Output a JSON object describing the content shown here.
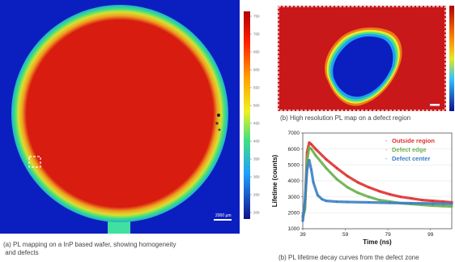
{
  "panel_a": {
    "caption_line1": "(a) PL mapping on a InP based wafer, showing homogeneity",
    "caption_line2": " and defects",
    "scalebar_label": "2000 µm",
    "colorbar_ticks": [
      "750",
      "700",
      "650",
      "600",
      "550",
      "500",
      "450",
      "400",
      "350",
      "300",
      "250",
      "200"
    ]
  },
  "panel_b_map": {
    "caption": "(b) High resolution PL map on a defect region"
  },
  "colors": {
    "background_map": "#0b1fc0",
    "map_red": "#d01a10",
    "outside_region": "#e03030",
    "defect_edge": "#6ab04c",
    "defect_center": "#3b7fc4"
  },
  "chart_data": {
    "type": "line",
    "title": "",
    "xlabel": "Time (ns)",
    "ylabel": "Lifetime (counts)",
    "xlim": [
      39,
      109
    ],
    "ylim": [
      1000,
      7000
    ],
    "xticks": [
      39,
      59,
      79,
      99
    ],
    "yticks": [
      1000,
      2000,
      3000,
      4000,
      5000,
      6000,
      7000
    ],
    "caption": "(b) PL lifetime decay curves from the defect zone",
    "series": [
      {
        "name": "Outside region",
        "color": "#e03030",
        "x": [
          39,
          40,
          41,
          42,
          43,
          45,
          50,
          55,
          60,
          65,
          70,
          75,
          80,
          85,
          90,
          95,
          100,
          105,
          109
        ],
        "y": [
          1800,
          2300,
          5800,
          6400,
          6300,
          6000,
          5350,
          4800,
          4300,
          3900,
          3600,
          3350,
          3150,
          3000,
          2900,
          2800,
          2750,
          2700,
          2650
        ]
      },
      {
        "name": "Defect edge",
        "color": "#6ab04c",
        "x": [
          39,
          40,
          41,
          42,
          43,
          45,
          50,
          55,
          60,
          65,
          70,
          75,
          80,
          85,
          90,
          95,
          100,
          105,
          109
        ],
        "y": [
          1700,
          2200,
          5300,
          6100,
          6000,
          5600,
          4800,
          4100,
          3600,
          3250,
          3000,
          2800,
          2700,
          2600,
          2550,
          2500,
          2450,
          2420,
          2400
        ]
      },
      {
        "name": "Defect center",
        "color": "#3b7fc4",
        "x": [
          39,
          40,
          41,
          42,
          43,
          44,
          46,
          48,
          50,
          55,
          60,
          70,
          80,
          90,
          100,
          109
        ],
        "y": [
          1500,
          2700,
          4700,
          5300,
          4700,
          3900,
          3100,
          2850,
          2750,
          2700,
          2680,
          2650,
          2620,
          2600,
          2580,
          2560
        ]
      }
    ]
  }
}
